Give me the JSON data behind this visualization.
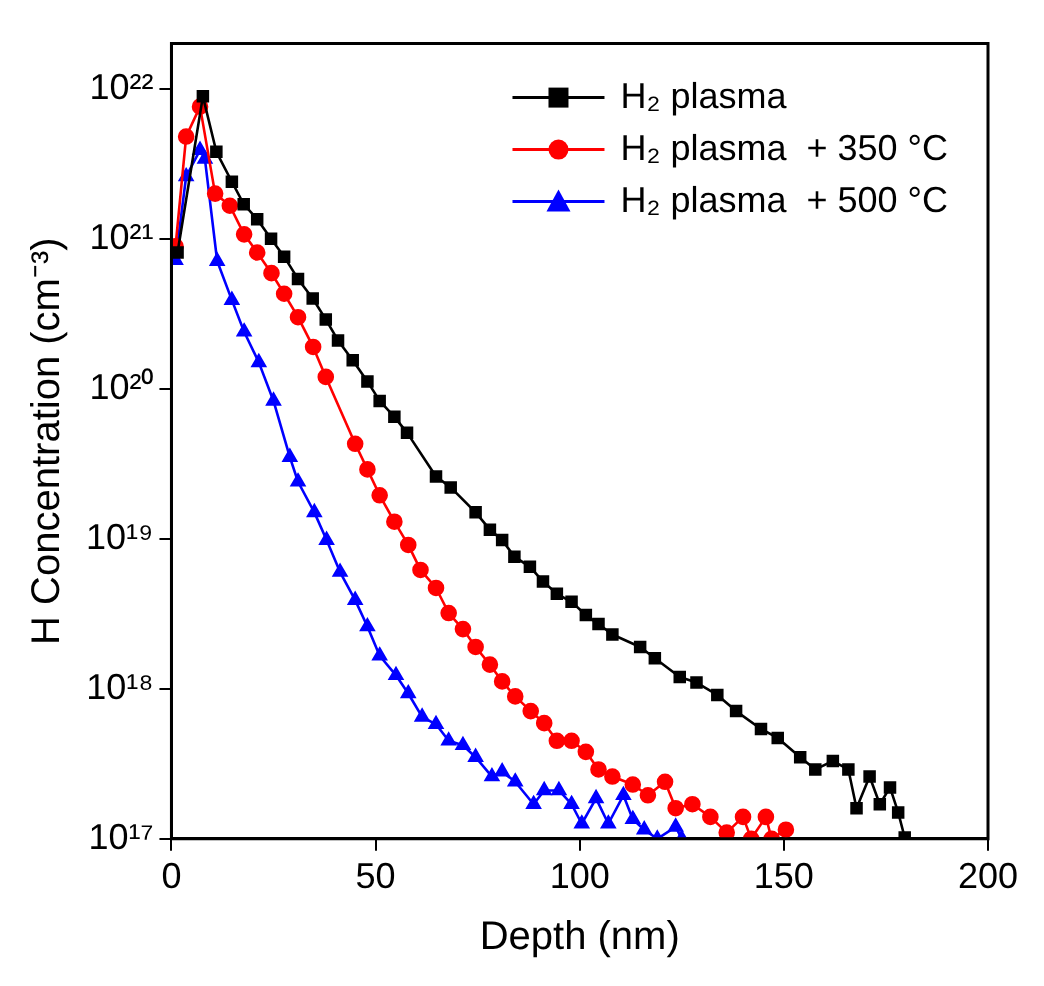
{
  "chart_data": {
    "type": "line",
    "xlabel": "Depth (nm)",
    "ylabel": "H Concentration (cm⁻³)",
    "log": "y",
    "xlim": [
      0,
      200
    ],
    "xticks": [
      0,
      50,
      100,
      150,
      200
    ],
    "ylim": [
      1e+17,
      2e+22
    ],
    "yticks": [
      {
        "value": 1e+17,
        "label": "10¹⁷"
      },
      {
        "value": 1e+18,
        "label": "10¹⁸"
      },
      {
        "value": 1e+19,
        "label": "10¹⁹"
      },
      {
        "value": 1e+20,
        "label": "10²⁰"
      },
      {
        "value": 1e+21,
        "label": "10²¹"
      },
      {
        "value": 1e+22,
        "label": "10²²"
      }
    ],
    "grid": false,
    "legend": "top right",
    "line_style": "solid",
    "series": [
      {
        "name": "H₂ plasma",
        "color": "#000000",
        "marker": "square",
        "x": [
          1.5,
          7.7,
          11,
          14.8,
          17.7,
          21,
          24.4,
          27.6,
          31,
          34.6,
          37.8,
          40.8,
          44.4,
          48,
          51,
          54.6,
          57.7,
          64.8,
          68.4,
          74.5,
          78,
          81,
          84,
          87.8,
          91,
          94.4,
          98,
          101.5,
          104.6,
          108,
          114.8,
          118.4,
          124.5,
          128.6,
          133.7,
          138.3,
          144.4,
          148.5,
          154,
          157.7,
          162,
          165.8,
          167.8,
          171,
          173.5,
          176,
          178,
          179.6
        ],
        "values": [
          8.1e+20,
          8.9e+21,
          3.8e+21,
          2.4e+21,
          1.7e+21,
          1.35e+21,
          1e+21,
          7.6e+20,
          5.4e+20,
          4e+20,
          2.9e+20,
          2.1e+20,
          1.55e+20,
          1.12e+20,
          8.3e+19,
          6.5e+19,
          5.1e+19,
          2.6e+19,
          2.2e+19,
          1.5e+19,
          1.15e+19,
          9.8e+18,
          7.6e+18,
          6.5e+18,
          5.2e+18,
          4.3e+18,
          3.8e+18,
          3.1e+18,
          2.7e+18,
          2.3e+18,
          1.9e+18,
          1.6e+18,
          1.2e+18,
          1.1e+18,
          9.1e+17,
          7.1e+17,
          5.4e+17,
          4.7e+17,
          3.5e+17,
          2.9e+17,
          3.3e+17,
          2.9e+17,
          1.6e+17,
          2.6e+17,
          1.7e+17,
          2.2e+17,
          1.5e+17,
          1.02e+17
        ]
      },
      {
        "name": "H₂ plasma  + 350 °C",
        "color": "#ff0000",
        "marker": "circle",
        "x": [
          1,
          3.6,
          7,
          10.7,
          14.3,
          17.8,
          21,
          24.5,
          27.6,
          31,
          34.7,
          37.8,
          45,
          48,
          51,
          54.6,
          58,
          61,
          64.8,
          67.9,
          71.4,
          74.5,
          78,
          81,
          84.2,
          88,
          91.3,
          94.4,
          98,
          101.5,
          104.6,
          108,
          113,
          116.7,
          120.9,
          123.5,
          127.6,
          132,
          136,
          140,
          142,
          145.6,
          147,
          150.5
        ],
        "values": [
          8.9e+20,
          4.8e+21,
          7.6e+21,
          2e+21,
          1.66e+21,
          1.07e+21,
          8.1e+20,
          5.9e+20,
          4.3e+20,
          3e+20,
          1.9e+20,
          1.2e+20,
          4.3e+19,
          2.9e+19,
          1.95e+19,
          1.3e+19,
          9.1e+18,
          6.2e+18,
          4.7e+18,
          3.2e+18,
          2.5e+18,
          1.9e+18,
          1.45e+18,
          1.12e+18,
          8.9e+17,
          7.1e+17,
          5.9e+17,
          4.5e+17,
          4.5e+17,
          3.8e+17,
          2.9e+17,
          2.6e+17,
          2.3e+17,
          1.95e+17,
          2.4e+17,
          1.6e+17,
          1.7e+17,
          1.4e+17,
          1.1e+17,
          1.4e+17,
          1e+17,
          1.4e+17,
          1e+17,
          1.15e+17
        ]
      },
      {
        "name": "H₂ plasma  + 500 °C",
        "color": "#0000ff",
        "marker": "triangle",
        "x": [
          1,
          3.6,
          7,
          8.2,
          11.2,
          14.8,
          17.8,
          21.4,
          25,
          29,
          31,
          35,
          38,
          41.3,
          45,
          48,
          51,
          55,
          58,
          61.4,
          64.8,
          67.9,
          71.4,
          74.5,
          78.5,
          81,
          84.2,
          88.7,
          91.3,
          94.9,
          98,
          100.5,
          104,
          107,
          110.7,
          113,
          115.8,
          119,
          123.5,
          125
        ],
        "values": [
          7.2e+20,
          2.6e+21,
          3.9e+21,
          3.4e+21,
          7.1e+20,
          3.9e+20,
          2.4e+20,
          1.5e+20,
          8.3e+19,
          3.5e+19,
          2.4e+19,
          1.5e+19,
          9.8e+18,
          6e+18,
          3.9e+18,
          2.6e+18,
          1.66e+18,
          1.23e+18,
          9.3e+17,
          6.5e+17,
          5.8e+17,
          4.5e+17,
          4.2e+17,
          3.5e+17,
          2.6e+17,
          2.8e+17,
          2.4e+17,
          1.7e+17,
          2.1e+17,
          2.1e+17,
          1.7e+17,
          1.26e+17,
          1.86e+17,
          1.26e+17,
          1.95e+17,
          1.35e+17,
          1.15e+17,
          1e+17,
          1.2e+17,
          1e+17
        ]
      }
    ]
  }
}
